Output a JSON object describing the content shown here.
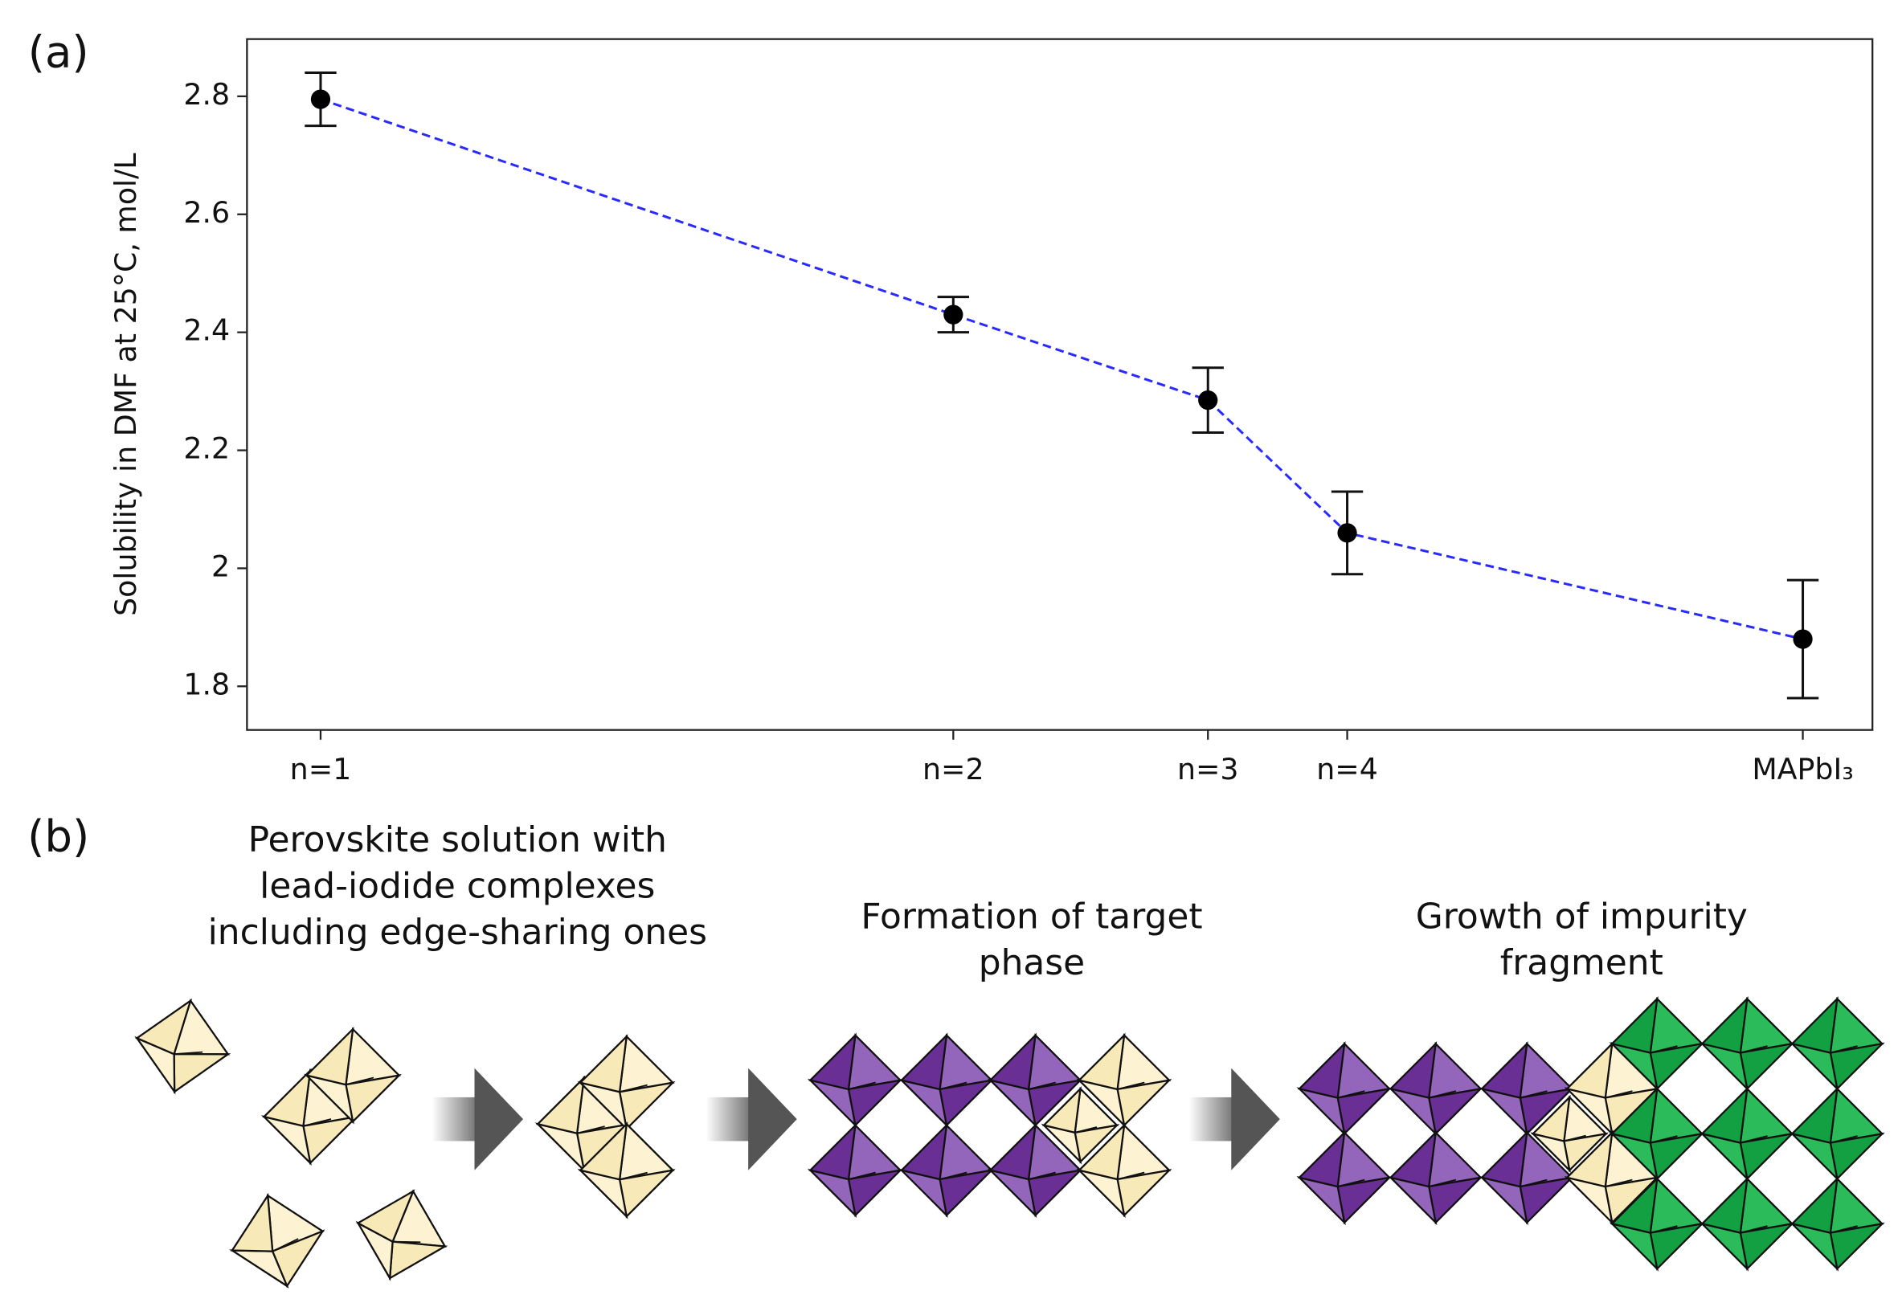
{
  "chart_data": {
    "type": "line",
    "panel_labels": [
      "(a)",
      "(b)"
    ],
    "ylabel": "Solubility in DMF at 25°C, mol/L",
    "x": [
      0.745,
      0.427,
      0.299,
      0.229,
      0
    ],
    "series": [
      {
        "color": "#2a2aff",
        "values": [
          2.795,
          2.43,
          2.285,
          2.06,
          1.88
        ],
        "errors": [
          0.045,
          0.03,
          0.055,
          0.07,
          0.1
        ]
      }
    ],
    "xlim": [
      0.782,
      -0.035
    ],
    "xticks": [
      {
        "value": 0.745,
        "label": "n=1"
      },
      {
        "value": 0.427,
        "label": "n=2"
      },
      {
        "value": 0.299,
        "label": "n=3"
      },
      {
        "value": 0.229,
        "label": "n=4"
      },
      {
        "value": 0,
        "label": "MAPbI₃"
      }
    ],
    "ylim": [
      1.726,
      2.897
    ],
    "yticks": [
      1.8,
      2,
      2.2,
      2.4,
      2.6,
      2.8
    ],
    "grid": false
  },
  "diagram": {
    "steps": [
      {
        "lines": [
          "Perovskite solution with",
          "lead-iodide complexes",
          "including edge-sharing ones"
        ]
      },
      {
        "lines": [
          "Formation of target",
          "phase"
        ]
      },
      {
        "lines": [
          "Growth of impurity",
          "fragment"
        ]
      }
    ]
  }
}
